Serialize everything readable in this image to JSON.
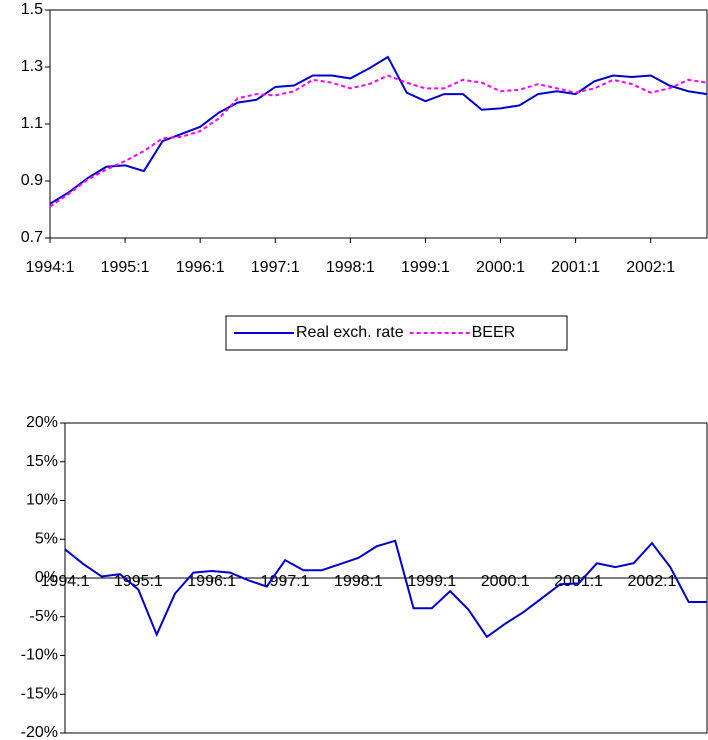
{
  "chart_data": [
    {
      "type": "line",
      "categories": [
        "1994:1",
        null,
        null,
        null,
        "1995:1",
        null,
        null,
        null,
        "1996:1",
        null,
        null,
        null,
        "1997:1",
        null,
        null,
        null,
        "1998:1",
        null,
        null,
        null,
        "1999:1",
        null,
        null,
        null,
        "2000:1",
        null,
        null,
        null,
        "2001:1",
        null,
        null,
        null,
        "2002:1",
        null,
        null,
        null
      ],
      "series": [
        {
          "name": "Real exch. rate",
          "color": "#0000cc",
          "dash": false,
          "values": [
            0.82,
            0.86,
            0.91,
            0.95,
            0.955,
            0.935,
            1.04,
            1.065,
            1.09,
            1.14,
            1.175,
            1.185,
            1.23,
            1.235,
            1.27,
            1.27,
            1.26,
            1.295,
            1.335,
            1.21,
            1.18,
            1.205,
            1.205,
            1.15,
            1.155,
            1.165,
            1.205,
            1.215,
            1.205,
            1.25,
            1.27,
            1.265,
            1.27,
            1.235,
            1.215,
            1.205
          ]
        },
        {
          "name": "BEER",
          "color": "#ff00ff",
          "dash": true,
          "values": [
            0.81,
            0.855,
            0.905,
            0.94,
            0.97,
            1.005,
            1.05,
            1.055,
            1.075,
            1.12,
            1.19,
            1.205,
            1.2,
            1.215,
            1.255,
            1.245,
            1.225,
            1.24,
            1.27,
            1.245,
            1.225,
            1.225,
            1.255,
            1.245,
            1.215,
            1.22,
            1.24,
            1.225,
            1.21,
            1.225,
            1.255,
            1.24,
            1.21,
            1.225,
            1.255,
            1.245
          ]
        }
      ],
      "ylim": [
        0.7,
        1.5
      ],
      "yticks": [
        0.7,
        0.9,
        1.1,
        1.3,
        1.5
      ],
      "grid": false,
      "legend": "bottom"
    },
    {
      "type": "line",
      "categories": [
        "1994:1",
        null,
        null,
        null,
        "1995:1",
        null,
        null,
        null,
        "1996:1",
        null,
        null,
        null,
        "1997:1",
        null,
        null,
        null,
        "1998:1",
        null,
        null,
        null,
        "1999:1",
        null,
        null,
        null,
        "2000:1",
        null,
        null,
        null,
        "2001:1",
        null,
        null,
        null,
        "2002:1",
        null,
        null,
        null
      ],
      "color": "#0000cc",
      "values": [
        3.7,
        1.8,
        0.2,
        0.5,
        -1.5,
        -7.3,
        -2,
        0.7,
        0.9,
        0.7,
        -0.3,
        -1.1,
        2.3,
        1.0,
        1.0,
        1.8,
        2.6,
        4.1,
        4.8,
        -3.9,
        -3.9,
        -1.7,
        -4.1,
        -7.6,
        -5.9,
        -4.4,
        -2.6,
        -0.8,
        -0.7,
        1.9,
        1.4,
        1.9,
        4.5,
        1.4,
        -3.1,
        -3.1
      ],
      "ylim": [
        -20,
        20
      ],
      "yticks": [
        {
          "value": -20,
          "label": "-20%"
        },
        {
          "value": -15,
          "label": "-15%"
        },
        {
          "value": -10,
          "label": "-10%"
        },
        {
          "value": -5,
          "label": "-5%"
        },
        {
          "value": 0,
          "label": "0%"
        },
        {
          "value": 5,
          "label": "5%"
        },
        {
          "value": 10,
          "label": "10%"
        },
        {
          "value": 15,
          "label": "15%"
        },
        {
          "value": 20,
          "label": "20%"
        }
      ],
      "grid": false
    }
  ]
}
